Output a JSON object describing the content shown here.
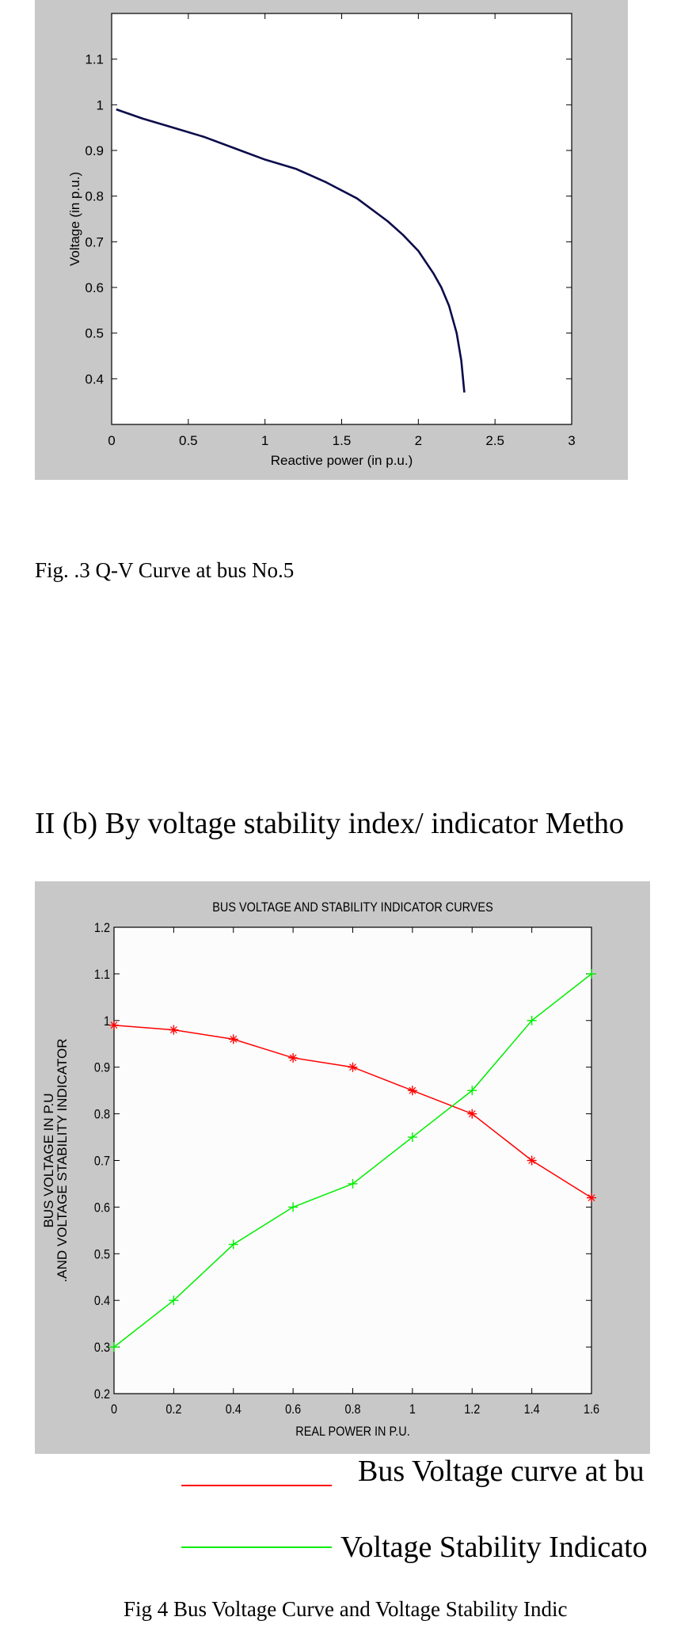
{
  "qv_chart_caption": "Fig. .3 Q-V Curve at bus No.5",
  "section_heading": "II (b) By voltage stability index/ indicator Metho",
  "legend": {
    "bus_voltage": "Bus Voltage curve at bu",
    "stability_indicator": "Voltage Stability Indicato"
  },
  "fig4_caption": "Fig 4 Bus Voltage Curve and Voltage Stability Indic",
  "colors": {
    "panel_bg": "#c8c8c8",
    "qv_line": "#0b0b4a",
    "bus_voltage": "#ff0000",
    "stability": "#00ee00"
  },
  "chart_data": [
    {
      "type": "line",
      "title": "",
      "xlabel": "Reactive power (in p.u.)",
      "ylabel": "Voltage (in p.u.)",
      "xlim": [
        0,
        3
      ],
      "ylim": [
        0.3,
        1.2
      ],
      "x_ticks": [
        "0",
        "0.5",
        "1",
        "1.5",
        "2",
        "2.5",
        "3"
      ],
      "y_ticks": [
        "0.4",
        "0.5",
        "0.6",
        "0.7",
        "0.8",
        "0.9",
        "1",
        "1.1"
      ],
      "grid": false,
      "series": [
        {
          "x": [
            0.03,
            0.2,
            0.4,
            0.6,
            0.8,
            1.0,
            1.2,
            1.4,
            1.6,
            1.8,
            1.9,
            2.0,
            2.1,
            2.15,
            2.2,
            2.25,
            2.28,
            2.3
          ],
          "y": [
            0.99,
            0.97,
            0.95,
            0.93,
            0.905,
            0.88,
            0.86,
            0.83,
            0.795,
            0.745,
            0.715,
            0.68,
            0.63,
            0.6,
            0.56,
            0.5,
            0.44,
            0.37
          ]
        }
      ]
    },
    {
      "type": "line",
      "title": "BUS VOLTAGE AND STABILITY INDICATOR CURVES",
      "xlabel": "REAL POWER IN P.U.",
      "ylabel": "BUS VOLTAGE IN P.U",
      "ylabel2": ".AND VOLTAGE STABILITY INDICATOR",
      "xlim": [
        0,
        1.6
      ],
      "ylim": [
        0.2,
        1.2
      ],
      "x_ticks": [
        "0",
        "0.2",
        "0.4",
        "0.6",
        "0.8",
        "1",
        "1.2",
        "1.4",
        "1.6"
      ],
      "y_ticks": [
        "0.2",
        "0.3",
        "0.4",
        "0.5",
        "0.6",
        "0.7",
        "0.8",
        "0.9",
        "1",
        "1.1",
        "1.2"
      ],
      "grid": false,
      "x": [
        0,
        0.2,
        0.4,
        0.6,
        0.8,
        1.0,
        1.2,
        1.4,
        1.6
      ],
      "series": [
        {
          "values": [
            0.99,
            0.98,
            0.96,
            0.92,
            0.9,
            0.85,
            0.8,
            0.7,
            0.62
          ]
        },
        {
          "values": [
            0.3,
            0.4,
            0.52,
            0.6,
            0.65,
            0.75,
            0.85,
            1.0,
            1.1
          ]
        }
      ]
    }
  ]
}
